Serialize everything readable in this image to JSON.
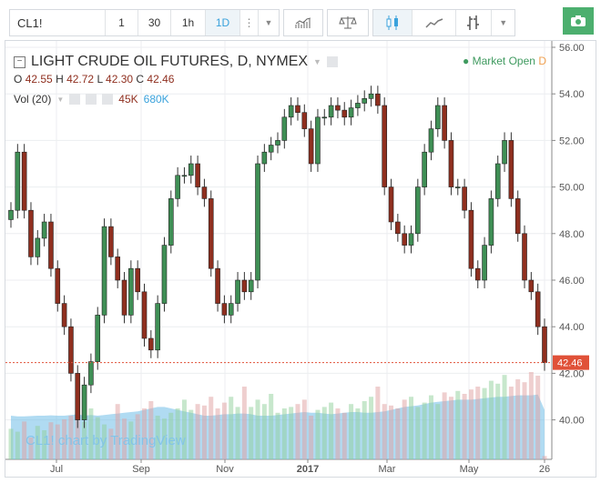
{
  "toolbar": {
    "symbol": "CL1!",
    "intervals": [
      "1",
      "30",
      "1h",
      "1D"
    ],
    "active_interval": "1D",
    "icons": [
      "more-icon",
      "chevron-down-icon",
      "indicators-icon",
      "compare-icon",
      "candles-icon",
      "line-chart-icon",
      "bars-icon",
      "chevron-down-icon",
      "camera-icon"
    ]
  },
  "legend": {
    "title": "LIGHT CRUDE OIL FUTURES, D, NYMEX",
    "o_label": "O",
    "o": "42.55",
    "h_label": "H",
    "h": "42.72",
    "l_label": "L",
    "l": "42.30",
    "c_label": "C",
    "c": "42.46",
    "vol_label": "Vol (20)",
    "vol": "45K",
    "vol_ma": "680K",
    "status": "Market Open",
    "status_letter": "D"
  },
  "watermark": "CL1! chart by TradingView",
  "colors": {
    "up": "#3f8f55",
    "down": "#8f2f1f",
    "price_tag": "#e05138",
    "volume_ma": "#6fbde8",
    "camera": "#4caf6e",
    "accent": "#3aa2dc"
  },
  "chart_data": {
    "type": "candlestick",
    "title": "LIGHT CRUDE OIL FUTURES, D, NYMEX",
    "ylim": [
      38.3,
      56.4
    ],
    "y_ticks": [
      "56.00",
      "54.00",
      "52.00",
      "50.00",
      "48.00",
      "46.00",
      "44.00",
      "42.00",
      "40.00"
    ],
    "x_ticks": [
      "Jul",
      "Sep",
      "Nov",
      "2017",
      "Mar",
      "May",
      "26"
    ],
    "last_price": "42.46",
    "closes": [
      49,
      51.5,
      49,
      47,
      47.8,
      48.5,
      46.5,
      45,
      44,
      42,
      40,
      41.5,
      42.5,
      44.5,
      48.3,
      47,
      46,
      44.5,
      46.5,
      45.5,
      43.5,
      43,
      45,
      47.5,
      49.5,
      50.5,
      50.5,
      51,
      50,
      49.5,
      46.5,
      45,
      44.5,
      45,
      46,
      45.5,
      46,
      51,
      51.5,
      51.8,
      52,
      53,
      53.5,
      53.2,
      52.5,
      51,
      53,
      53,
      53.5,
      53.3,
      53,
      53.4,
      53.6,
      53.8,
      54,
      53.5,
      50,
      48.5,
      48,
      47.5,
      48,
      50,
      51.5,
      52.5,
      53.5,
      52,
      50,
      50,
      49,
      46.5,
      46,
      47.5,
      49.5,
      51,
      52,
      49.5,
      48,
      46,
      45.5,
      44,
      42.46
    ],
    "volume_k": [
      420,
      380,
      520,
      300,
      460,
      400,
      510,
      480,
      550,
      600,
      640,
      520,
      700,
      580,
      480,
      420,
      760,
      560,
      520,
      620,
      700,
      800,
      600,
      560,
      640,
      700,
      820,
      680,
      760,
      740,
      860,
      700,
      780,
      860,
      720,
      1000,
      720,
      820,
      760,
      900,
      640,
      700,
      720,
      760,
      820,
      600,
      680,
      720,
      780,
      700,
      640,
      760,
      700,
      800,
      860,
      1000,
      760,
      740,
      700,
      820,
      860,
      720,
      780,
      880,
      760,
      920,
      860,
      940,
      900,
      960,
      1000,
      980,
      1080,
      1040,
      1160,
      1000,
      1100,
      1060,
      1200,
      1150,
      45
    ],
    "volume_ma_k": [
      600,
      590,
      590,
      595,
      600,
      600,
      605,
      600,
      600,
      610,
      620,
      600,
      610,
      600,
      610,
      620,
      630,
      640,
      650,
      660,
      680,
      700,
      720,
      720,
      700,
      680,
      660,
      640,
      620,
      600,
      600,
      610,
      620,
      620,
      630,
      630,
      620,
      600,
      600,
      600,
      610,
      620,
      630,
      640,
      650,
      640,
      640,
      630,
      620,
      630,
      640,
      650,
      650,
      640,
      640,
      650,
      660,
      680,
      700,
      720,
      730,
      740,
      760,
      780,
      790,
      800,
      810,
      820,
      820,
      820,
      830,
      840,
      850,
      860,
      860,
      870,
      880,
      880,
      880,
      890,
      680
    ]
  }
}
